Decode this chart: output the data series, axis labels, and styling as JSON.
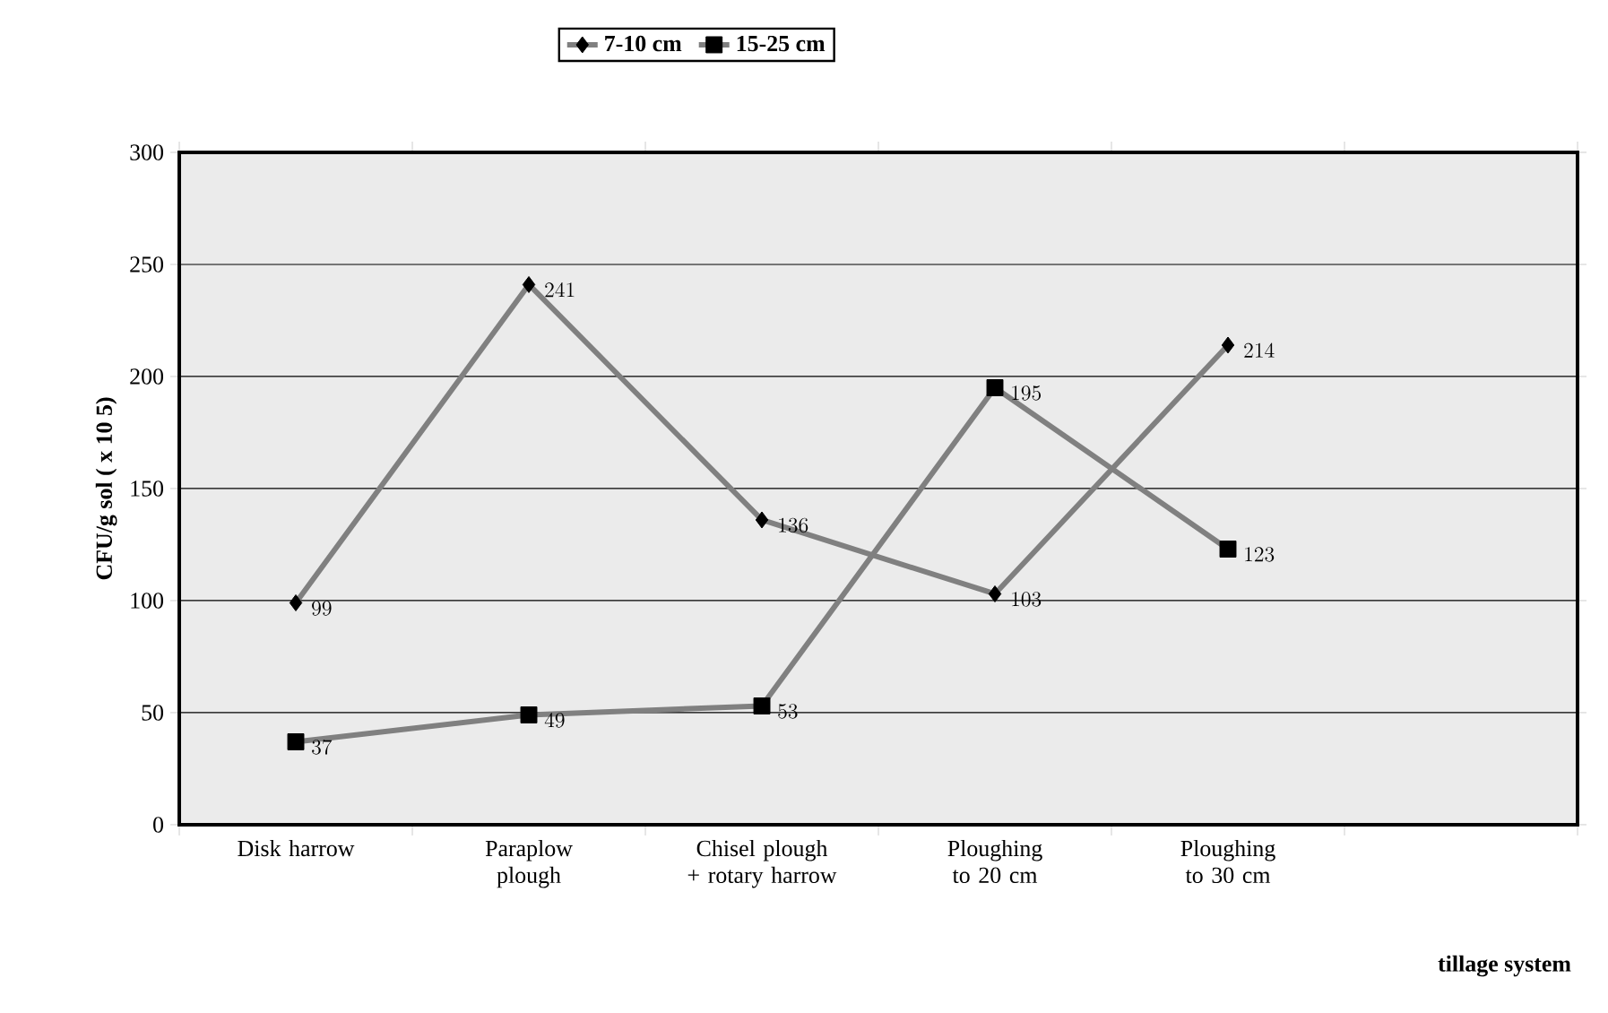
{
  "chart_data": {
    "type": "line",
    "categories": [
      "Disk harrow",
      "Paraplow plough",
      "Chisel plough + rotary harrow",
      "Ploughing to 20 cm",
      "Ploughing to 30 cm",
      null
    ],
    "series": [
      {
        "name": "7-10 cm",
        "color": "#808080",
        "marker": "diamond",
        "values": [
          99,
          241,
          136,
          103,
          214,
          null
        ]
      },
      {
        "name": "15-25 cm",
        "color": "#808080",
        "marker": "square",
        "values": [
          37,
          49,
          53,
          195,
          123,
          null
        ]
      }
    ],
    "xlabel": "tillage system",
    "ylabel": "CFU/g sol ( x 10 5)",
    "ylim": [
      0,
      300
    ],
    "yticks": [
      0,
      50,
      100,
      150,
      200,
      250,
      300
    ],
    "grid": "y",
    "legend": "top",
    "data_labels": true,
    "line_style": "solid"
  }
}
